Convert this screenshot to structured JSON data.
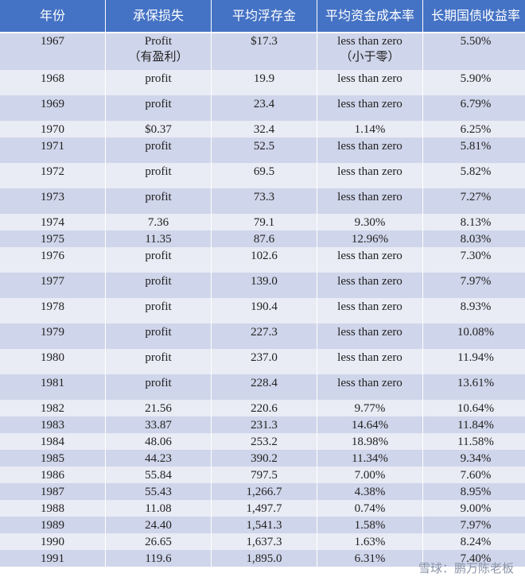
{
  "headers": [
    "年份",
    "承保损失",
    "平均浮存金",
    "平均资金成本率",
    "长期国债收益率"
  ],
  "rows": [
    {
      "h": "first",
      "c": [
        "1967",
        "Profit\n（有盈利）",
        "$17.3",
        "less than zero\n（小于零）",
        "5.50%"
      ]
    },
    {
      "h": "tall",
      "c": [
        "1968",
        "profit",
        "19.9",
        "less than zero",
        "5.90%"
      ]
    },
    {
      "h": "tall",
      "c": [
        "1969",
        "profit",
        "23.4",
        "less than zero",
        "6.79%"
      ]
    },
    {
      "h": "short",
      "c": [
        "1970",
        "$0.37",
        "32.4",
        "1.14%",
        "6.25%"
      ]
    },
    {
      "h": "tall",
      "c": [
        "1971",
        "profit",
        "52.5",
        "less than zero",
        "5.81%"
      ]
    },
    {
      "h": "tall",
      "c": [
        "1972",
        "profit",
        "69.5",
        "less than zero",
        "5.82%"
      ]
    },
    {
      "h": "tall",
      "c": [
        "1973",
        "profit",
        "73.3",
        "less than zero",
        "7.27%"
      ]
    },
    {
      "h": "short",
      "c": [
        "1974",
        "7.36",
        "79.1",
        "9.30%",
        "8.13%"
      ]
    },
    {
      "h": "short",
      "c": [
        "1975",
        "11.35",
        "87.6",
        "12.96%",
        "8.03%"
      ]
    },
    {
      "h": "tall",
      "c": [
        "1976",
        "profit",
        "102.6",
        "less than zero",
        "7.30%"
      ]
    },
    {
      "h": "tall",
      "c": [
        "1977",
        "profit",
        "139.0",
        "less than zero",
        "7.97%"
      ]
    },
    {
      "h": "tall",
      "c": [
        "1978",
        "profit",
        "190.4",
        "less than zero",
        "8.93%"
      ]
    },
    {
      "h": "tall",
      "c": [
        "1979",
        "profit",
        "227.3",
        "less than zero",
        "10.08%"
      ]
    },
    {
      "h": "tall",
      "c": [
        "1980",
        "profit",
        "237.0",
        "less than zero",
        "11.94%"
      ]
    },
    {
      "h": "tall",
      "c": [
        "1981",
        "profit",
        "228.4",
        "less than zero",
        "13.61%"
      ]
    },
    {
      "h": "short",
      "c": [
        "1982",
        "21.56",
        "220.6",
        "9.77%",
        "10.64%"
      ]
    },
    {
      "h": "short",
      "c": [
        "1983",
        "33.87",
        "231.3",
        "14.64%",
        "11.84%"
      ]
    },
    {
      "h": "short",
      "c": [
        "1984",
        "48.06",
        "253.2",
        "18.98%",
        "11.58%"
      ]
    },
    {
      "h": "short",
      "c": [
        "1985",
        "44.23",
        "390.2",
        "11.34%",
        "9.34%"
      ]
    },
    {
      "h": "short",
      "c": [
        "1986",
        "55.84",
        "797.5",
        "7.00%",
        "7.60%"
      ]
    },
    {
      "h": "short",
      "c": [
        "1987",
        "55.43",
        "1,266.7",
        "4.38%",
        "8.95%"
      ]
    },
    {
      "h": "short",
      "c": [
        "1988",
        "11.08",
        "1,497.7",
        "0.74%",
        "9.00%"
      ]
    },
    {
      "h": "short",
      "c": [
        "1989",
        "24.40",
        "1,541.3",
        "1.58%",
        "7.97%"
      ]
    },
    {
      "h": "short",
      "c": [
        "1990",
        "26.65",
        "1,637.3",
        "1.63%",
        "8.24%"
      ]
    },
    {
      "h": "short",
      "c": [
        "1991",
        "119.6",
        "1,895.0",
        "6.31%",
        "7.40%"
      ]
    }
  ],
  "watermark": "雪球：鹏万陈老板",
  "colors": {
    "header": "#4472C4",
    "row_dark": "#CFD5EA",
    "row_light": "#E9EBF5"
  }
}
